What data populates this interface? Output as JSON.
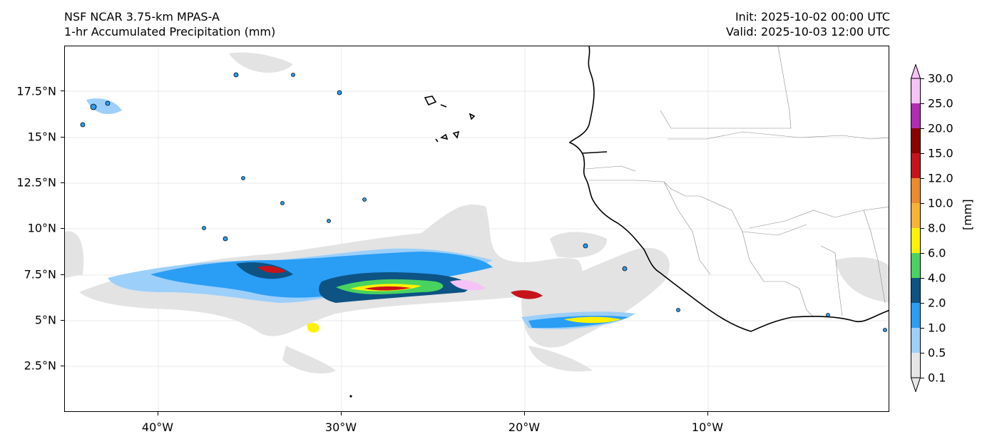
{
  "header": {
    "model": "NSF NCAR 3.75-km MPAS-A",
    "field": "1-hr Accumulated Precipitation (mm)",
    "init": "Init: 2025-10-02 00:00 UTC",
    "valid": "Valid: 2025-10-03 12:00 UTC"
  },
  "map": {
    "lat_labels": [
      "17.5°N",
      "15°N",
      "12.5°N",
      "10°N",
      "7.5°N",
      "5°N",
      "2.5°N"
    ],
    "lat_values": [
      17.5,
      15,
      12.5,
      10,
      7.5,
      5,
      2.5
    ],
    "lon_labels": [
      "40°W",
      "30°W",
      "20°W",
      "10°W"
    ],
    "lon_values": [
      -40,
      -30,
      -20,
      -10
    ],
    "lon_range": [
      -45,
      0
    ],
    "lat_range": [
      0,
      20
    ],
    "colors": {
      "coast": "#000000",
      "border": "#8a8a8a",
      "grid": "#e6e6e6"
    }
  },
  "colorbar": {
    "unit_label": "[mm]",
    "levels": [
      "0.1",
      "0.5",
      "1.0",
      "2.0",
      "4.0",
      "6.0",
      "8.0",
      "10.0",
      "12.0",
      "15.0",
      "20.0",
      "25.0",
      "30.0"
    ],
    "colors": [
      "#e6e6e6",
      "#9ccffa",
      "#2a9df4",
      "#0d5384",
      "#48d35e",
      "#fff200",
      "#f9b233",
      "#ed8a2b",
      "#c7141b",
      "#8c0000",
      "#b32bb3",
      "#f7c2f7"
    ]
  }
}
